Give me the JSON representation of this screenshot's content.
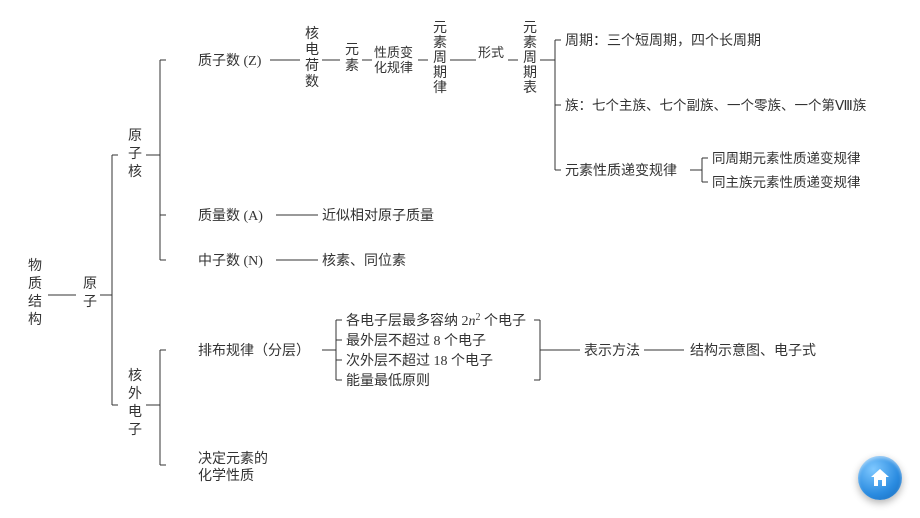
{
  "diagram": {
    "type": "tree",
    "font_size": 14,
    "text_color": "#333333",
    "line_color": "#333333",
    "line_width": 1,
    "background_color": "#ffffff",
    "root": "物质结构",
    "labels": {
      "root_l1": "物",
      "root_l2": "质",
      "root_l3": "结",
      "root_l4": "构",
      "atom_l1": "原",
      "atom_l2": "子",
      "nucleus_l1": "原",
      "nucleus_l2": "子",
      "nucleus_l3": "核",
      "electron_l1": "核",
      "electron_l2": "外",
      "electron_l3": "电",
      "electron_l4": "子",
      "proton": "质子数 (Z)",
      "mass": "质量数 (A)",
      "neutron": "中子数 (N)",
      "nuc_charge_l1": "核",
      "nuc_charge_l2": "电",
      "nuc_charge_l3": "荷",
      "nuc_charge_l4": "数",
      "element_l1": "元",
      "element_l2": "素",
      "prop_l1": "性质变",
      "prop_l2": "化规律",
      "plaw_l1": "元",
      "plaw_l2": "素",
      "plaw_l3": "周",
      "plaw_l4": "期",
      "plaw_l5": "律",
      "form": "形式",
      "ptable_l1": "元",
      "ptable_l2": "素",
      "ptable_l3": "周",
      "ptable_l4": "期",
      "ptable_l5": "表",
      "period": "周期：三个短周期，四个长周期",
      "group": "族：七个主族、七个副族、一个零族、一个第Ⅷ族",
      "trend": "元素性质递变规律",
      "trend_row": "同周期元素性质递变规律",
      "trend_col": "同主族元素性质递变规律",
      "approx_mass": "近似相对原子质量",
      "nuclide": "核素、同位素",
      "arrange": "排布规律（分层）",
      "rule1a": "各电子层最多容纳 2",
      "rule1b": "n",
      "rule1c": " 个电子",
      "rule1_sup": "2",
      "rule2": "最外层不超过 8 个电子",
      "rule3": "次外层不超过 18 个电子",
      "rule4": "能量最低原则",
      "repr": "表示方法",
      "repr_out": "结构示意图、电子式",
      "determine_l1": "决定元素的",
      "determine_l2": "化学性质"
    }
  },
  "fab": {
    "icon": "home",
    "bg_color": "#2a8be0",
    "icon_color": "#ffffff"
  }
}
